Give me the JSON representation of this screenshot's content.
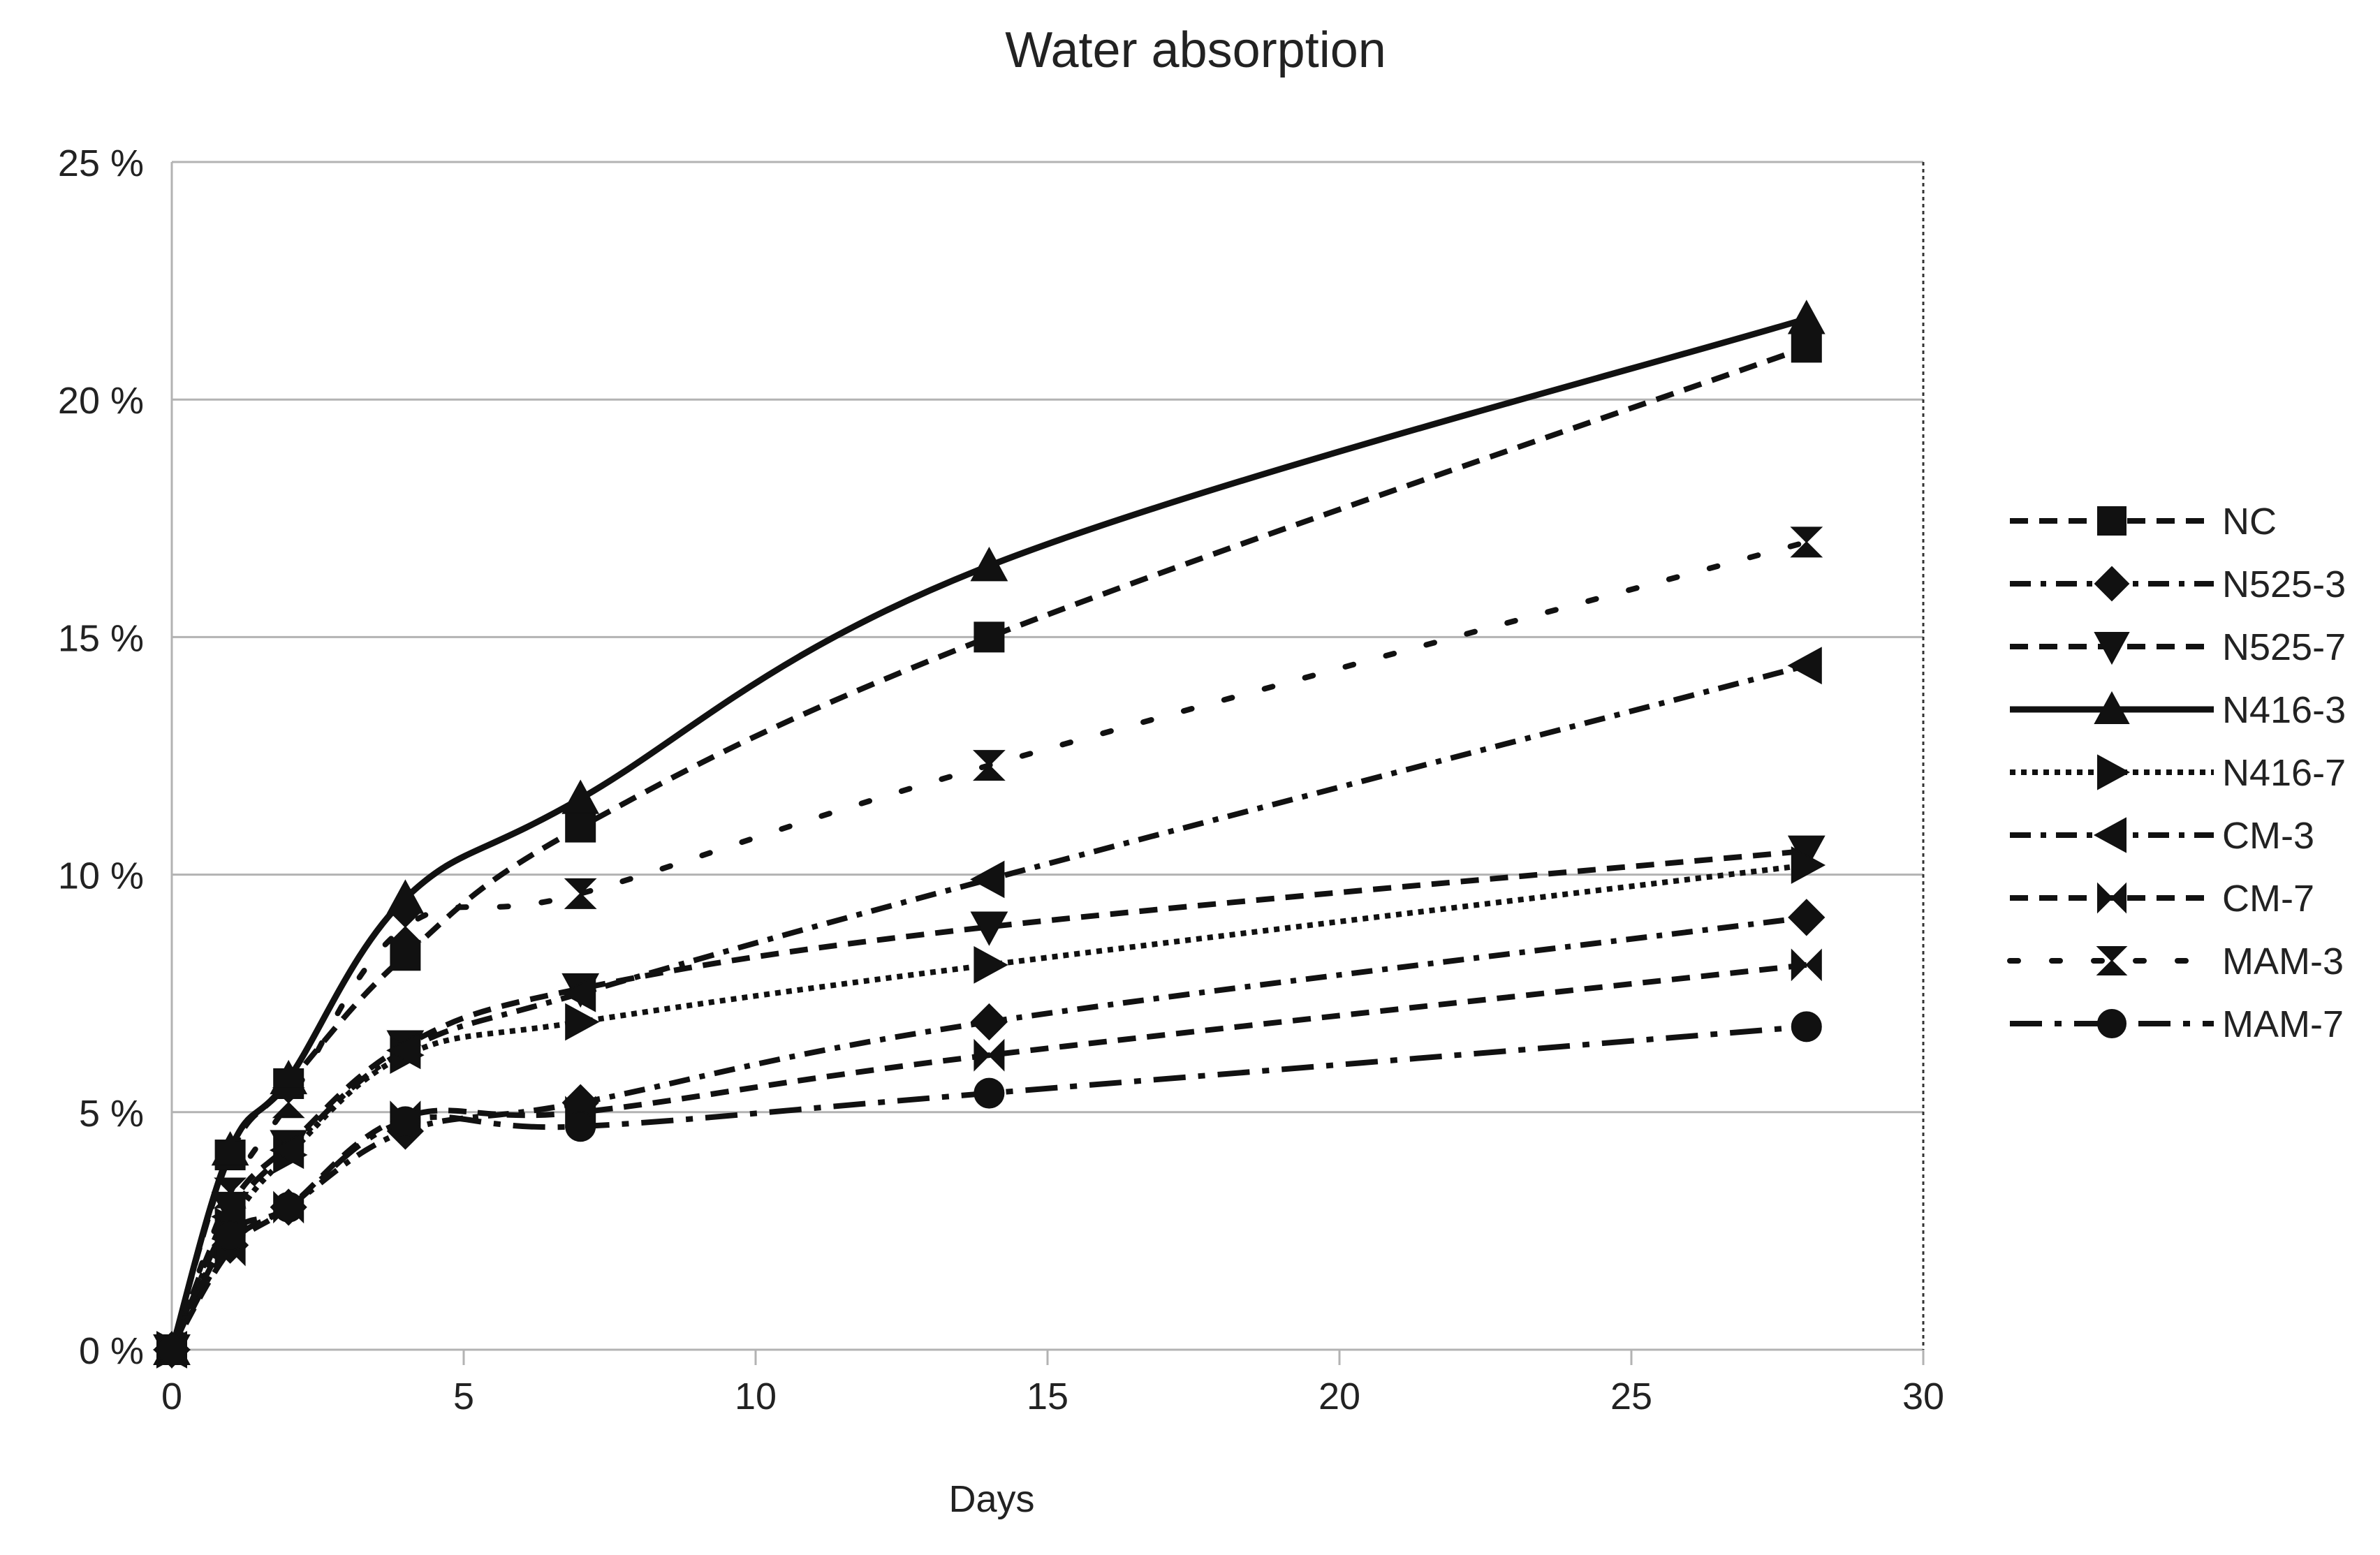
{
  "chart_data": {
    "type": "line",
    "title": "Water absorption",
    "xlabel": "Days",
    "ylabel": "",
    "xlim": [
      0,
      30
    ],
    "ylim": [
      0,
      25
    ],
    "x_ticks": [
      0,
      5,
      10,
      15,
      20,
      25,
      30
    ],
    "y_ticks": [
      0,
      5,
      10,
      15,
      20,
      25
    ],
    "x_tick_labels": [
      "0",
      "5",
      "10",
      "15",
      "20",
      "25",
      "30"
    ],
    "y_tick_labels": [
      "0 %",
      "5 %",
      "10 %",
      "15 %",
      "20 %",
      "25 %"
    ],
    "grid": "horizontal",
    "legend_position": "right",
    "series": [
      {
        "name": "NC",
        "marker": "square",
        "line": "dashed",
        "x": [
          0,
          1,
          2,
          4,
          7,
          14,
          28
        ],
        "y": [
          0,
          4.1,
          5.6,
          8.3,
          11.0,
          15.0,
          21.1
        ]
      },
      {
        "name": "N525-3",
        "marker": "diamond",
        "line": "dash-dot",
        "x": [
          0,
          1,
          2,
          4,
          7,
          14,
          28
        ],
        "y": [
          0,
          2.2,
          3.0,
          4.6,
          5.2,
          6.9,
          9.1
        ]
      },
      {
        "name": "N525-7",
        "marker": "triangle-down",
        "line": "dashed",
        "x": [
          0,
          1,
          2,
          4,
          7,
          14,
          28
        ],
        "y": [
          0,
          3.0,
          4.3,
          6.4,
          7.6,
          8.9,
          10.5
        ]
      },
      {
        "name": "N416-3",
        "marker": "triangle-up",
        "line": "solid",
        "x": [
          0,
          1,
          2,
          4,
          7,
          14,
          28
        ],
        "y": [
          0,
          4.2,
          5.7,
          9.5,
          11.6,
          16.5,
          21.7
        ]
      },
      {
        "name": "N416-7",
        "marker": "triangle-right",
        "line": "dotted",
        "x": [
          0,
          1,
          2,
          4,
          7,
          14,
          28
        ],
        "y": [
          0,
          2.6,
          4.1,
          6.2,
          6.9,
          8.1,
          10.2
        ]
      },
      {
        "name": "CM-3",
        "marker": "triangle-left",
        "line": "dash-dot",
        "x": [
          0,
          1,
          2,
          4,
          7,
          14,
          28
        ],
        "y": [
          0,
          2.8,
          4.2,
          6.3,
          7.5,
          9.9,
          14.4
        ]
      },
      {
        "name": "CM-7",
        "marker": "bowtie",
        "line": "dashed",
        "x": [
          0,
          1,
          2,
          4,
          7,
          14,
          28
        ],
        "y": [
          0,
          2.1,
          3.0,
          4.9,
          5.0,
          6.2,
          8.1
        ]
      },
      {
        "name": "MAM-3",
        "marker": "hourglass",
        "line": "sparse-dotted",
        "x": [
          0,
          1,
          2,
          4,
          7,
          14,
          28
        ],
        "y": [
          0,
          3.3,
          5.2,
          8.9,
          9.6,
          12.3,
          17.0
        ]
      },
      {
        "name": "MAM-7",
        "marker": "circle",
        "line": "long-dash-dot",
        "x": [
          0,
          1,
          2,
          4,
          7,
          14,
          28
        ],
        "y": [
          0,
          2.4,
          3.0,
          4.8,
          4.7,
          5.4,
          6.8
        ]
      }
    ]
  }
}
